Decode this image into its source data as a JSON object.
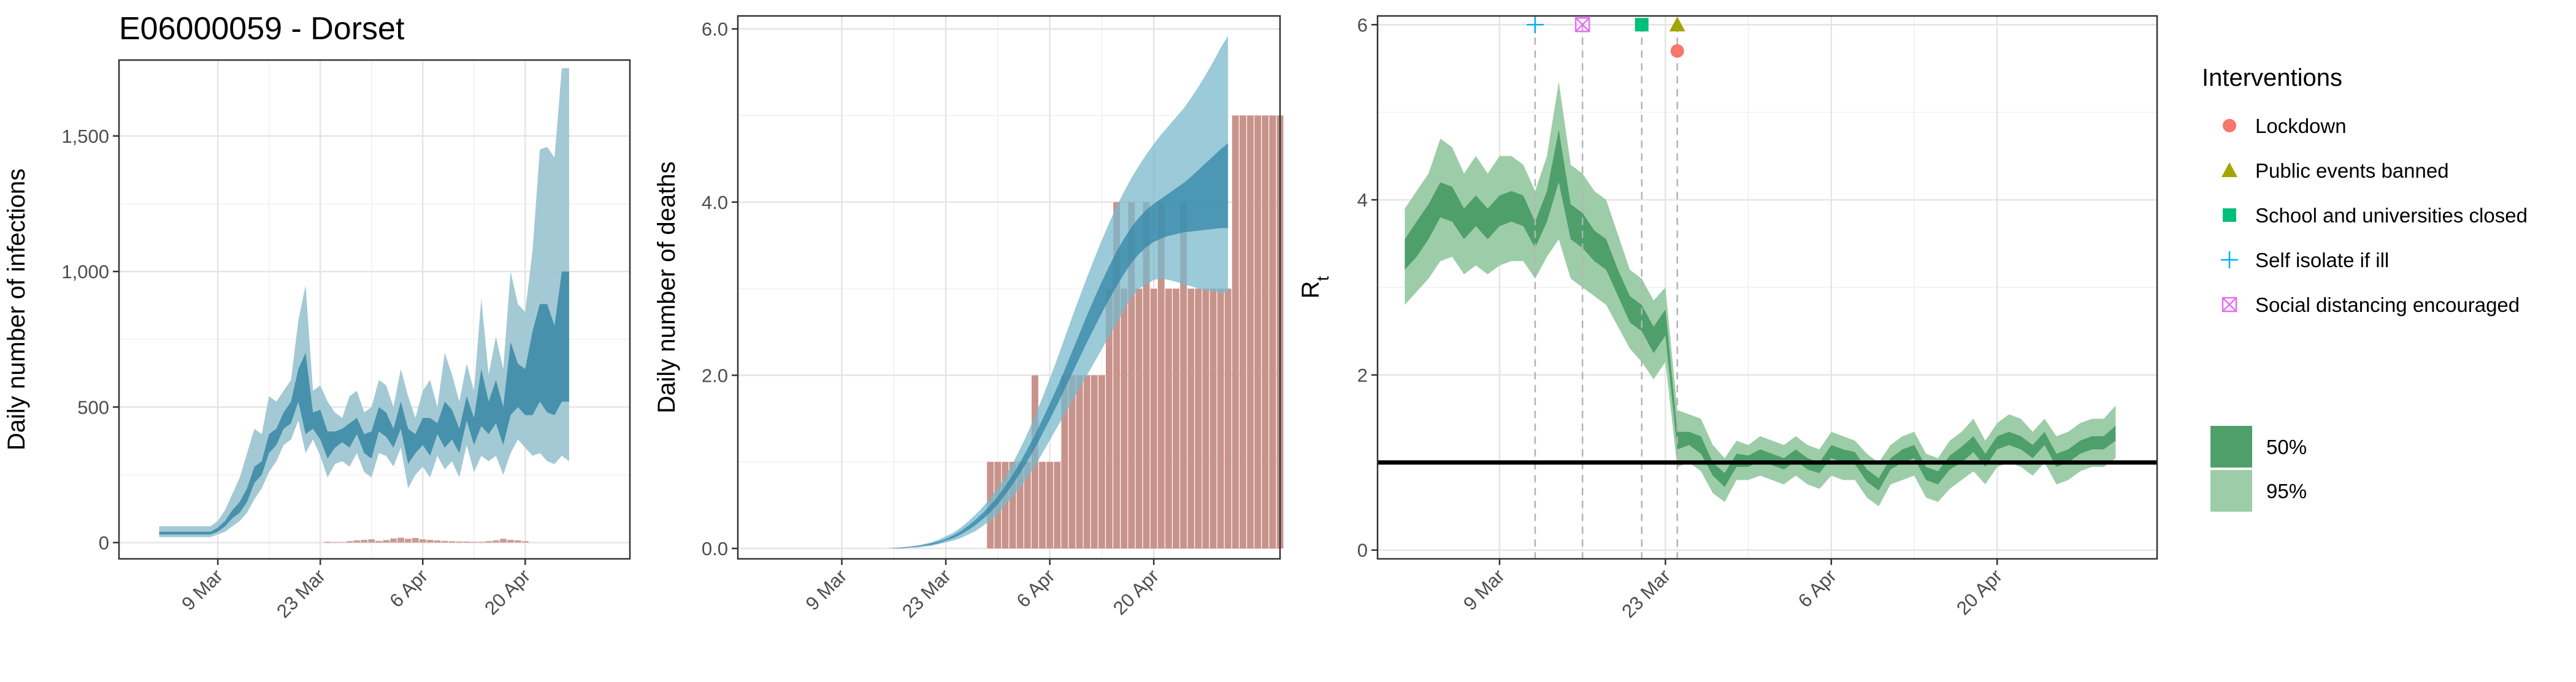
{
  "title": "E06000059 - Dorset",
  "colors": {
    "infections_band95": "#9ec6d3",
    "infections_band50": "#3d8ba7",
    "infections_reported": "#cc9a92",
    "deaths_band95": "#7ab8cc",
    "deaths_band50": "#3286a6",
    "deaths_reported": "#c8938b",
    "rt_band95": "#9ccda8",
    "rt_band50": "#4f9f6a",
    "lockdown": "#f8766d",
    "public_events": "#a3a500",
    "schools": "#00bf7d",
    "self_isolate": "#00b0f6",
    "social_distancing": "#e76bf3"
  },
  "chart_data": [
    {
      "type": "area",
      "panel": "infections",
      "ylabel": "Daily number of infections",
      "xlabel": "",
      "x_tick_labels": [
        "9 Mar",
        "23 Mar",
        "6 Apr",
        "20 Apr"
      ],
      "x_tick_days": [
        9,
        23,
        37,
        51
      ],
      "y_tick_labels": [
        "0",
        "500",
        "1,000",
        "1,500"
      ],
      "y_ticks": [
        0,
        500,
        1000,
        1500
      ],
      "xlim": [
        -4.5,
        65.3
      ],
      "ylim": [
        -60,
        1780
      ],
      "grid": true,
      "x_day_start": 1,
      "series": [
        {
          "name": "95%",
          "lower": [
            20,
            20,
            20,
            20,
            20,
            20,
            20,
            20,
            30,
            40,
            60,
            80,
            110,
            160,
            200,
            260,
            300,
            360,
            380,
            450,
            330,
            380,
            320,
            240,
            290,
            300,
            280,
            330,
            260,
            240,
            330,
            320,
            280,
            350,
            200,
            250,
            280,
            240,
            320,
            270,
            300,
            240,
            360,
            260,
            320,
            300,
            320,
            250,
            330,
            380,
            350,
            320,
            330,
            300,
            290,
            320,
            300
          ],
          "upper": [
            60,
            60,
            60,
            60,
            60,
            60,
            60,
            60,
            80,
            120,
            180,
            240,
            330,
            420,
            400,
            540,
            520,
            560,
            600,
            820,
            950,
            560,
            580,
            520,
            480,
            460,
            540,
            560,
            480,
            500,
            600,
            580,
            500,
            640,
            540,
            460,
            560,
            600,
            500,
            700,
            620,
            520,
            660,
            560,
            900,
            620,
            760,
            640,
            1000,
            880,
            850,
            1080,
            1450,
            1460,
            1420,
            1750,
            1750
          ]
        },
        {
          "name": "50%",
          "lower": [
            30,
            30,
            30,
            30,
            30,
            30,
            30,
            30,
            40,
            60,
            90,
            110,
            150,
            220,
            250,
            330,
            360,
            420,
            440,
            520,
            400,
            420,
            380,
            310,
            350,
            370,
            350,
            400,
            330,
            310,
            410,
            390,
            350,
            420,
            290,
            330,
            360,
            320,
            400,
            350,
            380,
            330,
            450,
            360,
            430,
            400,
            440,
            360,
            470,
            500,
            470,
            470,
            520,
            480,
            470,
            520,
            520
          ],
          "upper": [
            40,
            40,
            40,
            40,
            40,
            40,
            40,
            40,
            55,
            80,
            120,
            150,
            200,
            280,
            300,
            400,
            420,
            480,
            520,
            640,
            700,
            480,
            490,
            410,
            410,
            420,
            440,
            460,
            400,
            410,
            500,
            480,
            420,
            520,
            420,
            400,
            460,
            460,
            440,
            520,
            490,
            420,
            540,
            460,
            640,
            520,
            600,
            500,
            740,
            660,
            640,
            780,
            880,
            880,
            800,
            1000,
            1000
          ]
        }
      ],
      "reported_cases": [
        0,
        0,
        0,
        0,
        0,
        0,
        0,
        0,
        0,
        0,
        0,
        0,
        0,
        0,
        0,
        0,
        0,
        0,
        0,
        0,
        0,
        0,
        0,
        3,
        2,
        2,
        5,
        8,
        10,
        12,
        6,
        9,
        15,
        18,
        14,
        17,
        12,
        10,
        8,
        6,
        5,
        4,
        4,
        3,
        3,
        5,
        8,
        14,
        10,
        8,
        5,
        0,
        0,
        0,
        0,
        0,
        0
      ]
    },
    {
      "type": "area",
      "panel": "deaths",
      "ylabel": "Daily number of deaths",
      "xlabel": "",
      "x_tick_labels": [
        "9 Mar",
        "23 Mar",
        "6 Apr",
        "20 Apr"
      ],
      "x_tick_days": [
        9,
        23,
        37,
        51
      ],
      "y_tick_labels": [
        "0.0",
        "2.0",
        "4.0",
        "6.0"
      ],
      "y_ticks": [
        0,
        2,
        4,
        6
      ],
      "xlim": [
        -5,
        68
      ],
      "ylim": [
        -0.12,
        6.15
      ],
      "grid": true,
      "x_day_start": 1,
      "series": [
        {
          "name": "95%",
          "lower": [
            0,
            0,
            0,
            0,
            0,
            0,
            0,
            0,
            0,
            0,
            0,
            0,
            0.01,
            0.01,
            0.02,
            0.03,
            0.05,
            0.07,
            0.09,
            0.12,
            0.16,
            0.2,
            0.26,
            0.32,
            0.4,
            0.5,
            0.6,
            0.7,
            0.82,
            0.95,
            1.1,
            1.25,
            1.4,
            1.55,
            1.7,
            1.85,
            2.0,
            2.15,
            2.3,
            2.45,
            2.6,
            2.75,
            2.9,
            3.0,
            3.05,
            3.1,
            3.12,
            3.1,
            3.08,
            3.05,
            3.03,
            3.0,
            2.98,
            2.97,
            2.96,
            2.95
          ],
          "upper": [
            0,
            0,
            0,
            0,
            0,
            0,
            0,
            0,
            0,
            0,
            0.01,
            0.01,
            0.02,
            0.03,
            0.05,
            0.07,
            0.1,
            0.14,
            0.18,
            0.24,
            0.31,
            0.39,
            0.48,
            0.58,
            0.7,
            0.83,
            0.98,
            1.15,
            1.33,
            1.53,
            1.74,
            1.96,
            2.19,
            2.43,
            2.67,
            2.9,
            3.13,
            3.35,
            3.56,
            3.76,
            3.95,
            4.12,
            4.28,
            4.42,
            4.55,
            4.67,
            4.78,
            4.88,
            4.98,
            5.08,
            5.2,
            5.33,
            5.47,
            5.62,
            5.78,
            5.92
          ]
        },
        {
          "name": "50%",
          "lower": [
            0,
            0,
            0,
            0,
            0,
            0,
            0,
            0,
            0,
            0,
            0,
            0,
            0.01,
            0.02,
            0.03,
            0.04,
            0.06,
            0.09,
            0.12,
            0.16,
            0.21,
            0.27,
            0.34,
            0.42,
            0.51,
            0.62,
            0.74,
            0.87,
            1.01,
            1.16,
            1.32,
            1.49,
            1.66,
            1.84,
            2.02,
            2.2,
            2.38,
            2.55,
            2.72,
            2.88,
            3.03,
            3.17,
            3.3,
            3.4,
            3.48,
            3.54,
            3.58,
            3.61,
            3.63,
            3.65,
            3.66,
            3.67,
            3.68,
            3.69,
            3.7,
            3.7
          ],
          "upper": [
            0,
            0,
            0,
            0,
            0,
            0,
            0,
            0,
            0,
            0,
            0,
            0.01,
            0.02,
            0.03,
            0.04,
            0.06,
            0.08,
            0.11,
            0.15,
            0.2,
            0.26,
            0.33,
            0.41,
            0.5,
            0.6,
            0.72,
            0.85,
            0.99,
            1.15,
            1.31,
            1.49,
            1.67,
            1.86,
            2.06,
            2.27,
            2.48,
            2.69,
            2.89,
            3.08,
            3.26,
            3.43,
            3.58,
            3.71,
            3.82,
            3.91,
            3.98,
            4.04,
            4.1,
            4.16,
            4.22,
            4.29,
            4.37,
            4.45,
            4.53,
            4.61,
            4.68
          ]
        }
      ],
      "reported_deaths": [
        0,
        0,
        0,
        0,
        0,
        0,
        0,
        0,
        0,
        0,
        0,
        0,
        0,
        0,
        0,
        0,
        0,
        0,
        0,
        0,
        0,
        0,
        0,
        0,
        0,
        0,
        0,
        0,
        1,
        1,
        1,
        1,
        1,
        1,
        2,
        1,
        1,
        1,
        2,
        2,
        2,
        2,
        2,
        2,
        3,
        4,
        3,
        4,
        3,
        4,
        3,
        4,
        3,
        3,
        4,
        3,
        3,
        3,
        3,
        3,
        3,
        5,
        5,
        5,
        5,
        5,
        5,
        5
      ]
    },
    {
      "type": "line",
      "panel": "rt",
      "ylabel": "R",
      "ylabel_subscript": "t",
      "xlabel": "",
      "x_tick_labels": [
        "9 Mar",
        "23 Mar",
        "6 Apr",
        "20 Apr"
      ],
      "x_tick_days": [
        9,
        23,
        37,
        51
      ],
      "y_tick_labels": [
        "0",
        "2",
        "4",
        "6"
      ],
      "y_ticks": [
        0,
        2,
        4,
        6
      ],
      "xlim": [
        -1.3,
        64.5
      ],
      "ylim": [
        -0.1,
        6.1
      ],
      "grid": true,
      "x_day_start": 1,
      "reference_line": 1,
      "series": [
        {
          "name": "95%",
          "lower": [
            2.8,
            2.95,
            3.1,
            3.3,
            3.35,
            3.15,
            3.25,
            3.15,
            3.25,
            3.3,
            3.3,
            3.1,
            3.35,
            3.55,
            3.1,
            3.0,
            2.9,
            2.8,
            2.55,
            2.3,
            2.15,
            1.95,
            2.15,
            0.95,
            1.0,
            0.9,
            0.65,
            0.55,
            0.8,
            0.8,
            0.85,
            0.8,
            0.75,
            0.85,
            0.75,
            0.7,
            0.85,
            0.8,
            0.8,
            0.6,
            0.5,
            0.75,
            0.8,
            0.85,
            0.6,
            0.55,
            0.7,
            0.8,
            0.9,
            0.75,
            0.95,
            1.0,
            0.95,
            0.85,
            1.0,
            0.75,
            0.8,
            0.9,
            0.95,
            0.95,
            1.05
          ],
          "upper": [
            3.9,
            4.1,
            4.3,
            4.7,
            4.6,
            4.3,
            4.5,
            4.3,
            4.5,
            4.5,
            4.4,
            4.1,
            4.5,
            5.35,
            4.4,
            4.3,
            4.1,
            4.0,
            3.6,
            3.2,
            3.1,
            2.85,
            3.0,
            1.6,
            1.55,
            1.5,
            1.2,
            1.05,
            1.25,
            1.2,
            1.3,
            1.25,
            1.2,
            1.3,
            1.2,
            1.15,
            1.35,
            1.3,
            1.25,
            1.1,
            1.0,
            1.2,
            1.3,
            1.35,
            1.1,
            1.05,
            1.25,
            1.35,
            1.5,
            1.25,
            1.45,
            1.55,
            1.5,
            1.35,
            1.5,
            1.3,
            1.35,
            1.45,
            1.5,
            1.5,
            1.65
          ]
        },
        {
          "name": "50%",
          "lower": [
            3.2,
            3.35,
            3.55,
            3.8,
            3.75,
            3.55,
            3.7,
            3.55,
            3.7,
            3.75,
            3.7,
            3.45,
            3.75,
            4.2,
            3.55,
            3.45,
            3.3,
            3.2,
            2.9,
            2.6,
            2.5,
            2.25,
            2.45,
            1.15,
            1.2,
            1.1,
            0.85,
            0.72,
            0.95,
            0.95,
            1.02,
            0.97,
            0.92,
            1.02,
            0.92,
            0.88,
            1.05,
            1.0,
            0.98,
            0.78,
            0.68,
            0.92,
            1.0,
            1.05,
            0.8,
            0.75,
            0.92,
            1.0,
            1.12,
            0.95,
            1.15,
            1.2,
            1.15,
            1.05,
            1.2,
            0.95,
            1.0,
            1.1,
            1.15,
            1.15,
            1.25
          ],
          "upper": [
            3.55,
            3.75,
            3.95,
            4.2,
            4.15,
            3.9,
            4.05,
            3.9,
            4.05,
            4.1,
            4.05,
            3.75,
            4.1,
            4.8,
            3.95,
            3.85,
            3.65,
            3.55,
            3.2,
            2.9,
            2.8,
            2.55,
            2.75,
            1.35,
            1.35,
            1.3,
            1.0,
            0.88,
            1.1,
            1.08,
            1.15,
            1.1,
            1.05,
            1.15,
            1.05,
            1.0,
            1.2,
            1.15,
            1.12,
            0.92,
            0.82,
            1.05,
            1.15,
            1.2,
            0.95,
            0.9,
            1.08,
            1.18,
            1.3,
            1.1,
            1.3,
            1.35,
            1.3,
            1.2,
            1.35,
            1.1,
            1.15,
            1.25,
            1.3,
            1.3,
            1.42
          ]
        }
      ],
      "interventions": [
        {
          "name": "Self isolate if ill",
          "day": 12,
          "y": 6.0,
          "shape": "plus",
          "color_key": "self_isolate"
        },
        {
          "name": "Social distancing encouraged",
          "day": 16,
          "y": 6.0,
          "shape": "boxx",
          "color_key": "social_distancing"
        },
        {
          "name": "School and universities closed",
          "day": 21,
          "y": 6.0,
          "shape": "square",
          "color_key": "schools"
        },
        {
          "name": "Public events banned",
          "day": 24,
          "y": 6.0,
          "shape": "triangle",
          "color_key": "public_events"
        },
        {
          "name": "Lockdown",
          "day": 24,
          "y": 5.7,
          "shape": "circle",
          "color_key": "lockdown"
        }
      ]
    }
  ],
  "legend": {
    "interventions_title": "Interventions",
    "interventions": [
      {
        "label": "Lockdown",
        "shape": "circle",
        "color_key": "lockdown"
      },
      {
        "label": "Public events banned",
        "shape": "triangle",
        "color_key": "public_events"
      },
      {
        "label": "School and universities closed",
        "shape": "square",
        "color_key": "schools"
      },
      {
        "label": "Self isolate if ill",
        "shape": "plus",
        "color_key": "self_isolate"
      },
      {
        "label": "Social distancing encouraged",
        "shape": "boxx",
        "color_key": "social_distancing"
      }
    ],
    "bands": [
      {
        "label": "50%",
        "color_key": "rt_band50"
      },
      {
        "label": "95%",
        "color_key": "rt_band95"
      }
    ]
  }
}
